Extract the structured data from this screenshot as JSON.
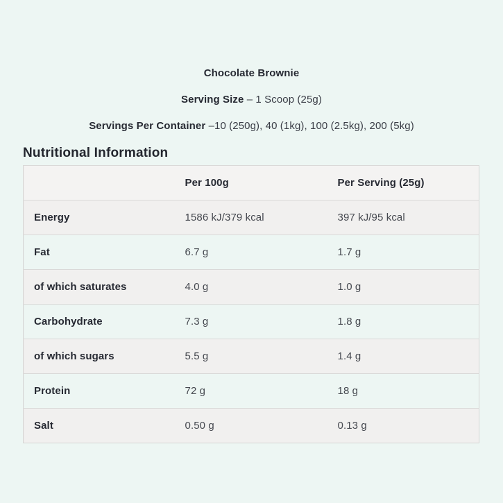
{
  "page": {
    "background_color": "#edf6f3"
  },
  "header": {
    "product_title": "Chocolate Brownie",
    "serving_size_label": "Serving Size",
    "serving_size_value": "– 1 Scoop (25g)",
    "servings_label": "Servings Per Container",
    "servings_value": "–10 (250g), 40 (1kg), 100 (2.5kg), 200 (5kg)",
    "section_title": "Nutritional Information"
  },
  "table": {
    "columns": [
      "",
      "Per 100g",
      "Per Serving (25g)"
    ],
    "rows": [
      {
        "label": "Energy",
        "per100g": "1586 kJ/379 kcal",
        "perServing": "397 kJ/95 kcal"
      },
      {
        "label": "Fat",
        "per100g": "6.7 g",
        "perServing": "1.7 g"
      },
      {
        "label": "of which saturates",
        "per100g": "4.0 g",
        "perServing": "1.0 g"
      },
      {
        "label": "Carbohydrate",
        "per100g": "7.3 g",
        "perServing": "1.8 g"
      },
      {
        "label": "of which sugars",
        "per100g": "5.5 g",
        "perServing": "1.4 g"
      },
      {
        "label": "Protein",
        "per100g": "72 g",
        "perServing": "18 g"
      },
      {
        "label": "Salt",
        "per100g": "0.50 g",
        "perServing": "0.13 g"
      }
    ]
  },
  "colors": {
    "header_row": "#f4f3f2",
    "row_stripe": "#f1f0ef",
    "table_border": "#d5d4d3",
    "text_dark": "#272a33",
    "text_value": "#45484f"
  }
}
